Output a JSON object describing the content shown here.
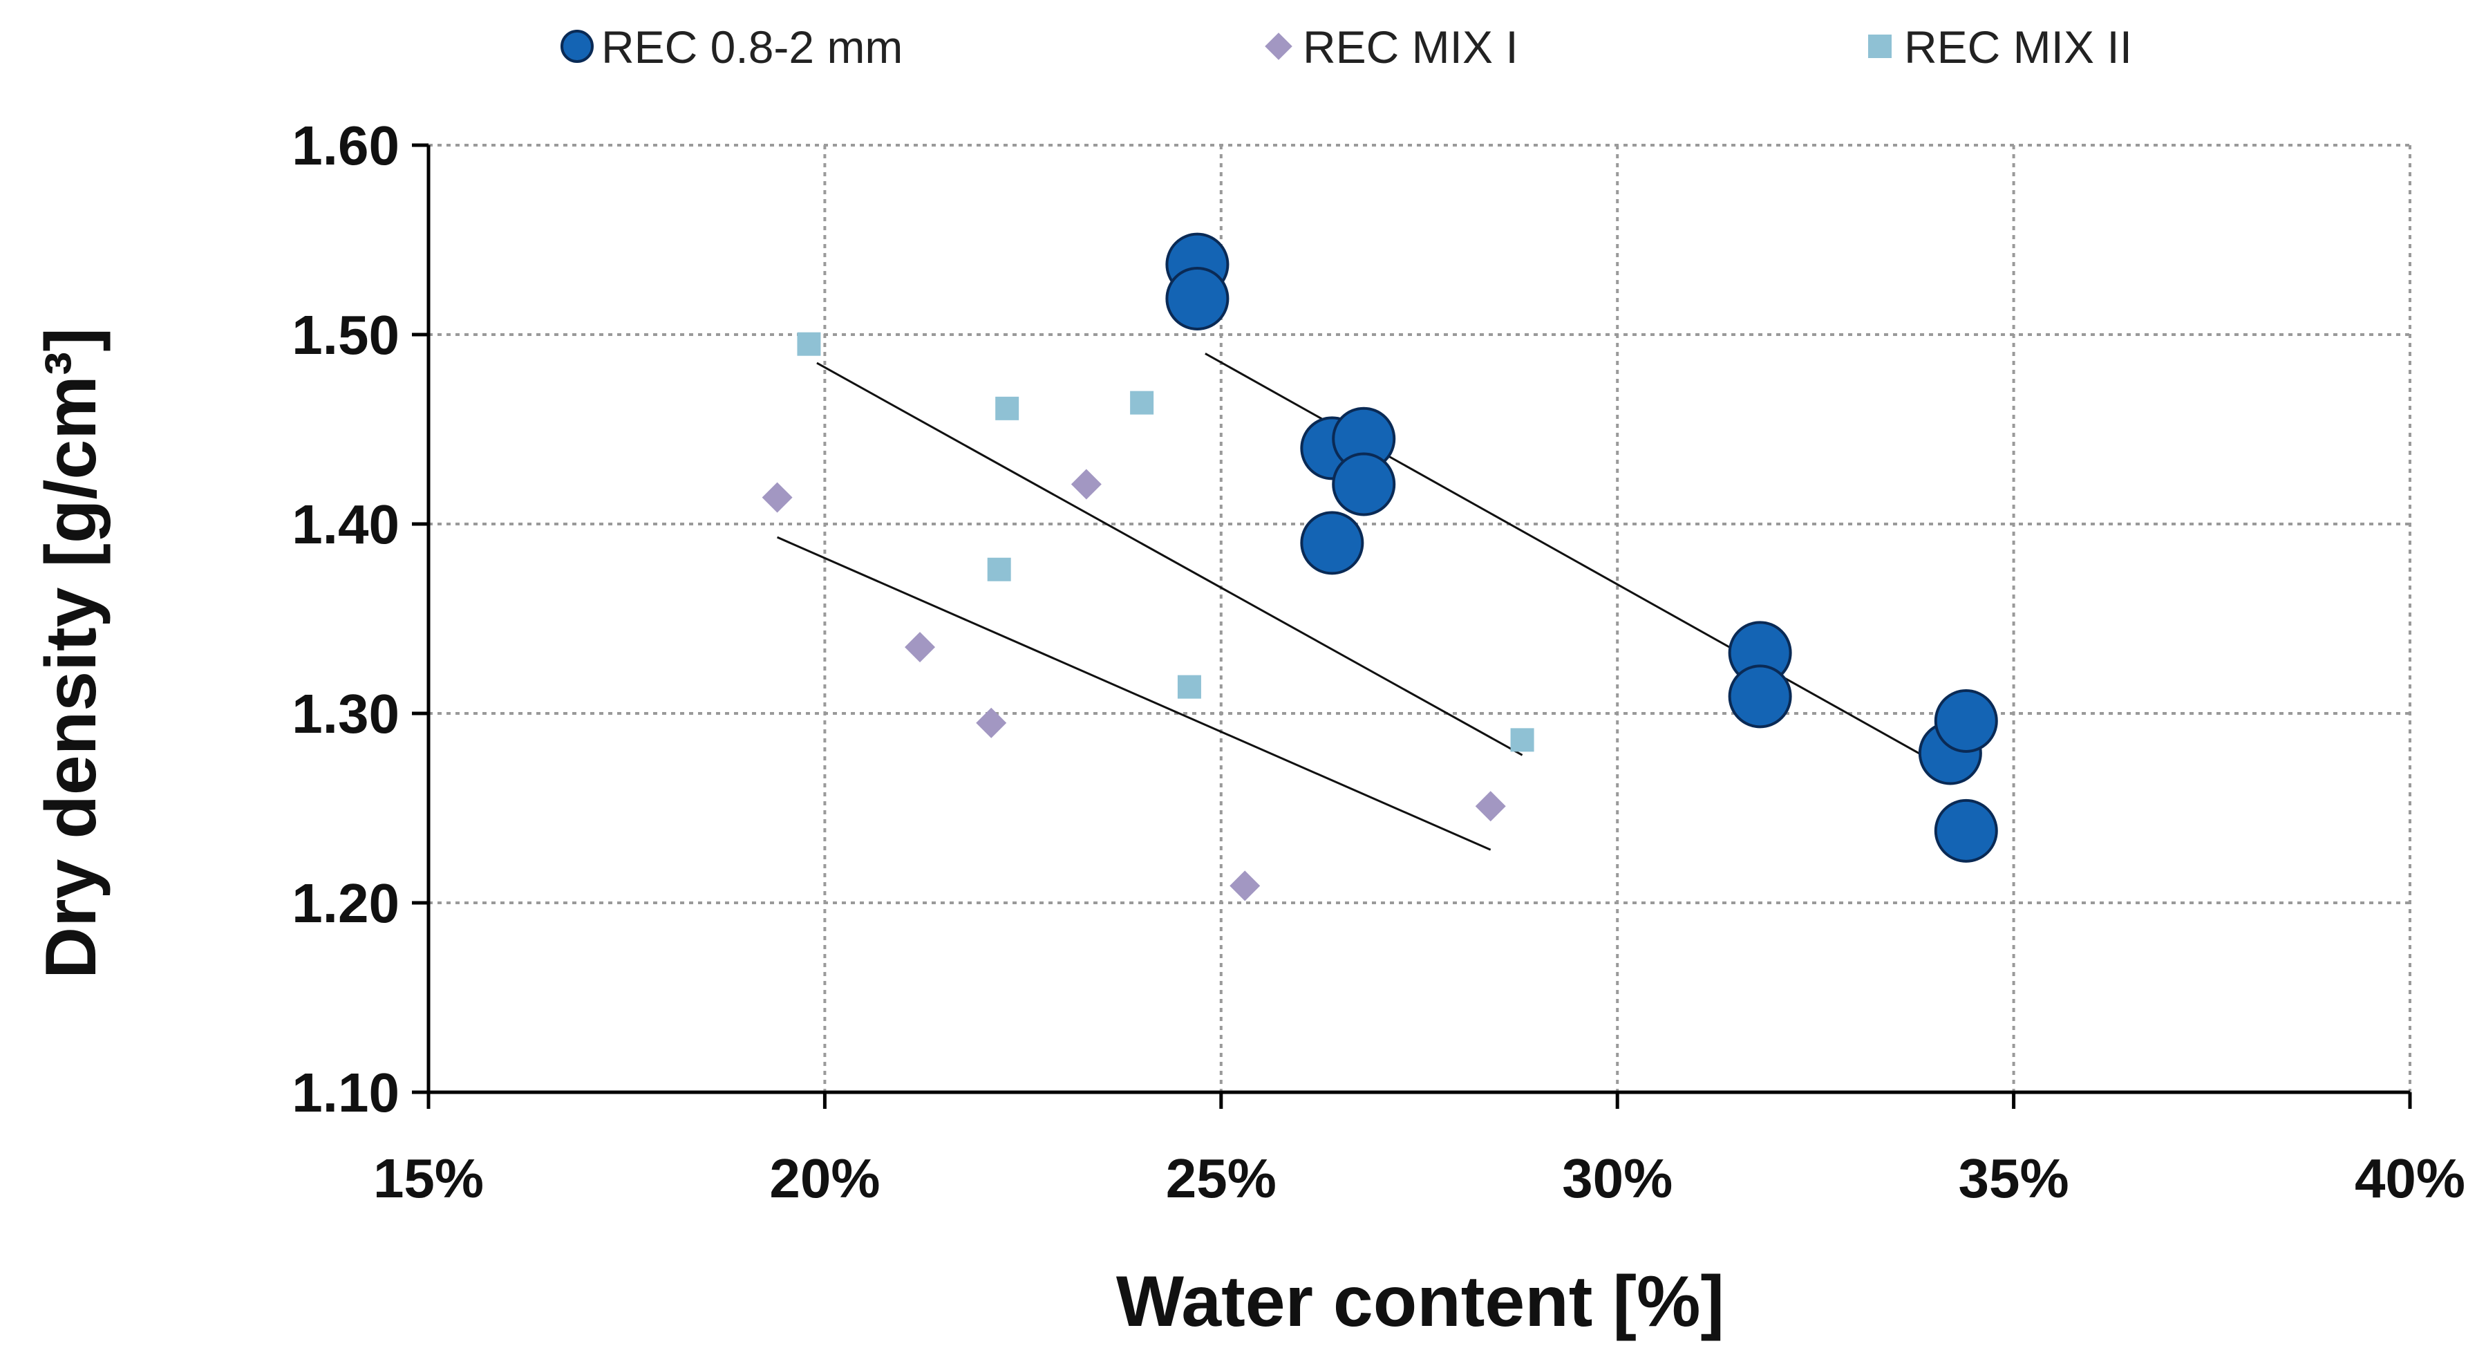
{
  "chart_data": {
    "type": "scatter",
    "xlabel": "Water content [%]",
    "ylabel": "Dry density [g/cm³]",
    "xlim": [
      15,
      40
    ],
    "ylim": [
      1.1,
      1.6
    ],
    "grid": true,
    "legend_position": "top",
    "x_ticks": [
      {
        "value": 15,
        "label": "15%"
      },
      {
        "value": 20,
        "label": "20%"
      },
      {
        "value": 25,
        "label": "25%"
      },
      {
        "value": 30,
        "label": "30%"
      },
      {
        "value": 35,
        "label": "35%"
      },
      {
        "value": 40,
        "label": "40%"
      }
    ],
    "y_ticks": [
      {
        "value": 1.1,
        "label": "1.10"
      },
      {
        "value": 1.2,
        "label": "1.20"
      },
      {
        "value": 1.3,
        "label": "1.30"
      },
      {
        "value": 1.4,
        "label": "1.40"
      },
      {
        "value": 1.5,
        "label": "1.50"
      },
      {
        "value": 1.6,
        "label": "1.60"
      }
    ],
    "series": [
      {
        "name": "REC 0.8-2 mm",
        "marker": "circle",
        "color": "#1464b4",
        "stroke": "#0a2a55",
        "points": [
          [
            24.7,
            1.537
          ],
          [
            24.7,
            1.519
          ],
          [
            26.4,
            1.44
          ],
          [
            26.4,
            1.39
          ],
          [
            26.8,
            1.445
          ],
          [
            26.8,
            1.421
          ],
          [
            31.8,
            1.332
          ],
          [
            31.8,
            1.309
          ],
          [
            34.2,
            1.279
          ],
          [
            34.4,
            1.296
          ],
          [
            34.4,
            1.238
          ]
        ],
        "trendline": [
          [
            24.8,
            1.49
          ],
          [
            34.4,
            1.265
          ]
        ]
      },
      {
        "name": "REC MIX I",
        "marker": "diamond",
        "color": "#a297c2",
        "points": [
          [
            19.4,
            1.414
          ],
          [
            21.2,
            1.335
          ],
          [
            22.1,
            1.295
          ],
          [
            23.3,
            1.421
          ],
          [
            25.3,
            1.209
          ],
          [
            28.4,
            1.251
          ]
        ],
        "trendline": [
          [
            19.4,
            1.393
          ],
          [
            28.4,
            1.228
          ]
        ]
      },
      {
        "name": "REC MIX II",
        "marker": "square",
        "color": "#8fc1d4",
        "points": [
          [
            19.8,
            1.495
          ],
          [
            22.2,
            1.376
          ],
          [
            22.3,
            1.461
          ],
          [
            24.0,
            1.464
          ],
          [
            24.6,
            1.314
          ],
          [
            28.8,
            1.286
          ]
        ],
        "trendline": [
          [
            19.9,
            1.485
          ],
          [
            28.8,
            1.278
          ]
        ]
      }
    ]
  }
}
